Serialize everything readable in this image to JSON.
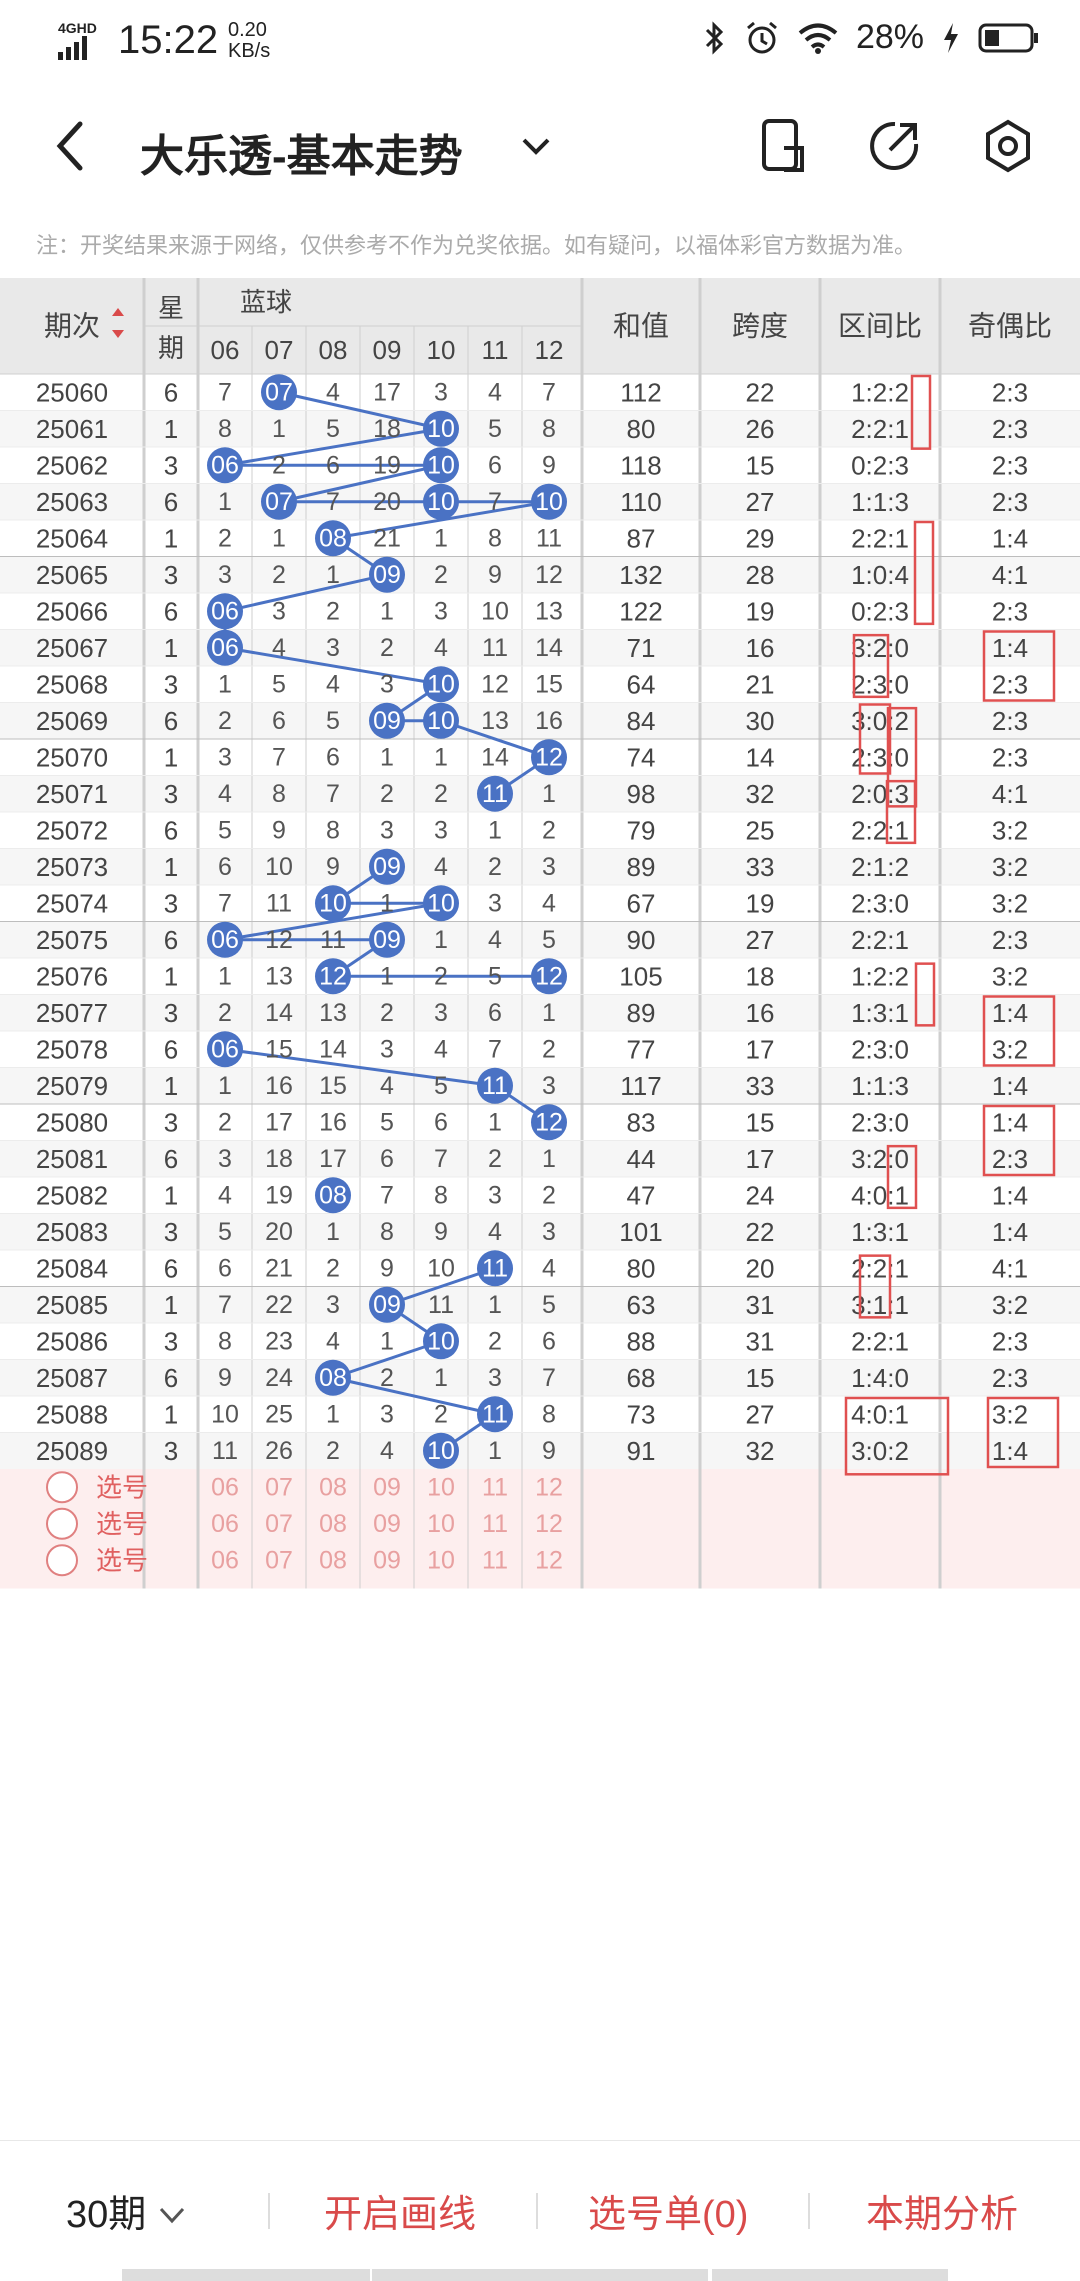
{
  "status_bar": {
    "network": "4GHD",
    "time": "15:22",
    "speed_value": "0.20",
    "speed_unit": "KB/s",
    "battery": "28%"
  },
  "header": {
    "title": "大乐透-基本走势"
  },
  "note": "注：开奖结果来源于网络，仅供参考不作为兑奖依据。如有疑问，以福体彩官方数据为准。",
  "table": {
    "headers": {
      "issue": "期次",
      "week": "星期",
      "blue": "蓝球",
      "sum": "和值",
      "span": "跨度",
      "zone": "区间比",
      "odd": "奇偶比"
    },
    "blue_columns": [
      "06",
      "07",
      "08",
      "09",
      "10",
      "11",
      "12"
    ],
    "rows": [
      {
        "issue": "25060",
        "week": "6",
        "cells": [
          "7",
          "07",
          "4",
          "17",
          "3",
          "4",
          "7"
        ],
        "hit": "07",
        "sum": "112",
        "span": "22",
        "zone": "1:2:2",
        "odd": "2:3"
      },
      {
        "issue": "25061",
        "week": "1",
        "cells": [
          "8",
          "1",
          "5",
          "18",
          "10",
          "5",
          "8"
        ],
        "hit": "10",
        "sum": "80",
        "span": "26",
        "zone": "2:2:1",
        "odd": "2:3"
      },
      {
        "issue": "25062",
        "week": "3",
        "cells": [
          "06",
          "2",
          "6",
          "19",
          "10",
          "6",
          "9"
        ],
        "hit": "06",
        "hit2": "10",
        "sum": "118",
        "span": "15",
        "zone": "0:2:3",
        "odd": "2:3"
      },
      {
        "issue": "25063",
        "week": "6",
        "cells": [
          "1",
          "07",
          "7",
          "20",
          "10",
          "7",
          "10"
        ],
        "hit": "07",
        "hit2": "10",
        "sum": "110",
        "span": "27",
        "zone": "1:1:3",
        "odd": "2:3"
      },
      {
        "issue": "25064",
        "week": "1",
        "cells": [
          "2",
          "1",
          "08",
          "21",
          "1",
          "8",
          "11"
        ],
        "hit": "08",
        "sum": "87",
        "span": "29",
        "zone": "2:2:1",
        "odd": "1:4"
      },
      {
        "issue": "25065",
        "week": "3",
        "cells": [
          "3",
          "2",
          "1",
          "09",
          "2",
          "9",
          "12"
        ],
        "hit": "09",
        "sum": "132",
        "span": "28",
        "zone": "1:0:4",
        "odd": "4:1"
      },
      {
        "issue": "25066",
        "week": "6",
        "cells": [
          "06",
          "3",
          "2",
          "1",
          "3",
          "10",
          "13"
        ],
        "hit": "06",
        "sum": "122",
        "span": "19",
        "zone": "0:2:3",
        "odd": "2:3"
      },
      {
        "issue": "25067",
        "week": "1",
        "cells": [
          "06",
          "4",
          "3",
          "2",
          "4",
          "11",
          "14"
        ],
        "hit": "06",
        "sum": "71",
        "span": "16",
        "zone": "3:2:0",
        "odd": "1:4"
      },
      {
        "issue": "25068",
        "week": "3",
        "cells": [
          "1",
          "5",
          "4",
          "3",
          "10",
          "12",
          "15"
        ],
        "hit": "10",
        "sum": "64",
        "span": "21",
        "zone": "2:3:0",
        "odd": "2:3"
      },
      {
        "issue": "25069",
        "week": "6",
        "cells": [
          "2",
          "6",
          "5",
          "09",
          "10",
          "13",
          "16"
        ],
        "hit": "09",
        "hit2": "10",
        "sum": "84",
        "span": "30",
        "zone": "3:0:2",
        "odd": "2:3"
      },
      {
        "issue": "25070",
        "week": "1",
        "cells": [
          "3",
          "7",
          "6",
          "1",
          "1",
          "14",
          "12"
        ],
        "hit": "12",
        "sum": "74",
        "span": "14",
        "zone": "2:3:0",
        "odd": "2:3"
      },
      {
        "issue": "25071",
        "week": "3",
        "cells": [
          "4",
          "8",
          "7",
          "2",
          "2",
          "11",
          "1"
        ],
        "hit": "11",
        "sum": "98",
        "span": "32",
        "zone": "2:0:3",
        "odd": "4:1"
      },
      {
        "issue": "25072",
        "week": "6",
        "cells": [
          "5",
          "9",
          "8",
          "3",
          "3",
          "1",
          "2"
        ],
        "hit": "",
        "sum": "79",
        "span": "25",
        "zone": "2:2:1",
        "odd": "3:2"
      },
      {
        "issue": "25073",
        "week": "1",
        "cells": [
          "6",
          "10",
          "9",
          "09",
          "4",
          "2",
          "3"
        ],
        "hit": "09",
        "sum": "89",
        "span": "33",
        "zone": "2:1:2",
        "odd": "3:2"
      },
      {
        "issue": "25074",
        "week": "3",
        "cells": [
          "7",
          "11",
          "10",
          "1",
          "10",
          "3",
          "4"
        ],
        "hit": "10",
        "sum": "67",
        "span": "19",
        "zone": "2:3:0",
        "odd": "3:2"
      },
      {
        "issue": "25075",
        "week": "6",
        "cells": [
          "06",
          "12",
          "11",
          "09",
          "1",
          "4",
          "5"
        ],
        "hit": "06",
        "hit2": "09",
        "sum": "90",
        "span": "27",
        "zone": "2:2:1",
        "odd": "2:3"
      },
      {
        "issue": "25076",
        "week": "1",
        "cells": [
          "1",
          "13",
          "12",
          "1",
          "2",
          "5",
          "12"
        ],
        "hit": "12",
        "sum": "105",
        "span": "18",
        "zone": "1:2:2",
        "odd": "3:2"
      },
      {
        "issue": "25077",
        "week": "3",
        "cells": [
          "2",
          "14",
          "13",
          "2",
          "3",
          "6",
          "1"
        ],
        "hit": "",
        "sum": "89",
        "span": "16",
        "zone": "1:3:1",
        "odd": "1:4"
      },
      {
        "issue": "25078",
        "week": "6",
        "cells": [
          "06",
          "15",
          "14",
          "3",
          "4",
          "7",
          "2"
        ],
        "hit": "06",
        "sum": "77",
        "span": "17",
        "zone": "2:3:0",
        "odd": "3:2"
      },
      {
        "issue": "25079",
        "week": "1",
        "cells": [
          "1",
          "16",
          "15",
          "4",
          "5",
          "11",
          "3"
        ],
        "hit": "11",
        "sum": "117",
        "span": "33",
        "zone": "1:1:3",
        "odd": "1:4"
      },
      {
        "issue": "25080",
        "week": "3",
        "cells": [
          "2",
          "17",
          "16",
          "5",
          "6",
          "1",
          "12"
        ],
        "hit": "12",
        "sum": "83",
        "span": "15",
        "zone": "2:3:0",
        "odd": "1:4"
      },
      {
        "issue": "25081",
        "week": "6",
        "cells": [
          "3",
          "18",
          "17",
          "6",
          "7",
          "2",
          "1"
        ],
        "hit": "",
        "sum": "44",
        "span": "17",
        "zone": "3:2:0",
        "odd": "2:3"
      },
      {
        "issue": "25082",
        "week": "1",
        "cells": [
          "4",
          "19",
          "08",
          "7",
          "8",
          "3",
          "2"
        ],
        "hit": "08",
        "sum": "47",
        "span": "24",
        "zone": "4:0:1",
        "odd": "1:4"
      },
      {
        "issue": "25083",
        "week": "3",
        "cells": [
          "5",
          "20",
          "1",
          "8",
          "9",
          "4",
          "3"
        ],
        "hit": "",
        "sum": "101",
        "span": "22",
        "zone": "1:3:1",
        "odd": "1:4"
      },
      {
        "issue": "25084",
        "week": "6",
        "cells": [
          "6",
          "21",
          "2",
          "9",
          "10",
          "11",
          "4"
        ],
        "hit": "11",
        "sum": "80",
        "span": "20",
        "zone": "2:2:1",
        "odd": "4:1"
      },
      {
        "issue": "25085",
        "week": "1",
        "cells": [
          "7",
          "22",
          "3",
          "09",
          "11",
          "1",
          "5"
        ],
        "hit": "09",
        "sum": "63",
        "span": "31",
        "zone": "3:1:1",
        "odd": "3:2"
      },
      {
        "issue": "25086",
        "week": "3",
        "cells": [
          "8",
          "23",
          "4",
          "1",
          "10",
          "2",
          "6"
        ],
        "hit": "10",
        "sum": "88",
        "span": "31",
        "zone": "2:2:1",
        "odd": "2:3"
      },
      {
        "issue": "25087",
        "week": "6",
        "cells": [
          "9",
          "24",
          "08",
          "2",
          "1",
          "3",
          "7"
        ],
        "hit": "08",
        "sum": "68",
        "span": "15",
        "zone": "1:4:0",
        "odd": "2:3"
      },
      {
        "issue": "25088",
        "week": "1",
        "cells": [
          "10",
          "25",
          "1",
          "3",
          "2",
          "11",
          "8"
        ],
        "hit": "11",
        "sum": "73",
        "span": "27",
        "zone": "4:0:1",
        "odd": "3:2"
      },
      {
        "issue": "25089",
        "week": "3",
        "cells": [
          "11",
          "26",
          "2",
          "4",
          "10",
          "1",
          "9"
        ],
        "hit": "10",
        "sum": "91",
        "span": "32",
        "zone": "3:0:2",
        "odd": "1:4"
      }
    ],
    "select_rows": [
      {
        "label": "选号",
        "numbers": [
          "06",
          "07",
          "08",
          "09",
          "10",
          "11",
          "12"
        ]
      },
      {
        "label": "选号",
        "numbers": [
          "06",
          "07",
          "08",
          "09",
          "10",
          "11",
          "12"
        ]
      },
      {
        "label": "选号",
        "numbers": [
          "06",
          "07",
          "08",
          "09",
          "10",
          "11",
          "12"
        ]
      }
    ]
  },
  "colors": {
    "ball": "#4a72c4",
    "line": "#4a72c4",
    "annotation": "#e05050",
    "accent": "#d94a4a",
    "header_bg": "#e9e9e9",
    "select_bg": "#fdeeee"
  },
  "bottom_bar": {
    "period": "30期",
    "draw_line": "开启画线",
    "selection": "选号单(0)",
    "analysis": "本期分析"
  }
}
